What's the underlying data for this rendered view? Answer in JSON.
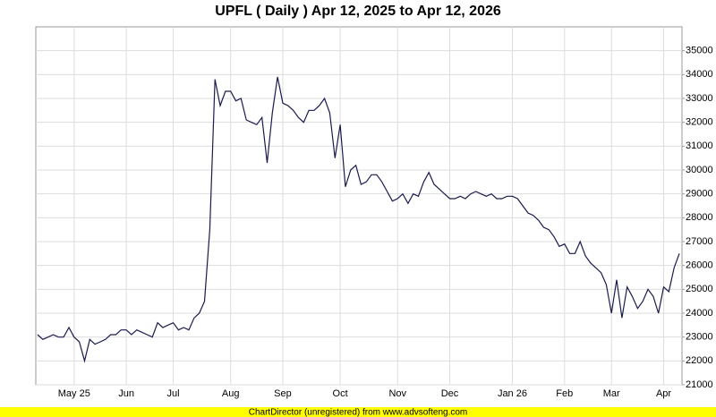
{
  "chart_data": {
    "type": "line",
    "title": "UPFL ( Daily ) Apr 12, 2025 to Apr 12, 2026",
    "footer": "ChartDirector (unregistered) from www.advsofteng.com",
    "color": "#1a1a4e",
    "categories": [
      null,
      null,
      null,
      null,
      null,
      null,
      null,
      "May 25",
      null,
      null,
      null,
      null,
      null,
      null,
      null,
      null,
      null,
      "Jun",
      null,
      null,
      null,
      null,
      null,
      null,
      null,
      null,
      "Jul",
      null,
      null,
      null,
      null,
      null,
      null,
      null,
      null,
      null,
      null,
      "Aug",
      null,
      null,
      null,
      null,
      null,
      null,
      null,
      null,
      null,
      "Sep",
      null,
      null,
      null,
      null,
      null,
      null,
      null,
      null,
      null,
      null,
      "Oct",
      null,
      null,
      null,
      null,
      null,
      null,
      null,
      null,
      null,
      null,
      "Nov",
      null,
      null,
      null,
      null,
      null,
      null,
      null,
      null,
      null,
      "Dec",
      null,
      null,
      null,
      null,
      null,
      null,
      null,
      null,
      null,
      null,
      null,
      "Jan 26",
      null,
      null,
      null,
      null,
      null,
      null,
      null,
      null,
      null,
      "Feb",
      null,
      null,
      null,
      null,
      null,
      null,
      null,
      null,
      "Mar",
      null,
      null,
      null,
      null,
      null,
      null,
      null,
      null,
      null,
      "Apr",
      null,
      null,
      null
    ],
    "values": [
      23100,
      22900,
      23000,
      23100,
      23000,
      23000,
      23400,
      23000,
      22800,
      22000,
      22900,
      22700,
      22800,
      22900,
      23100,
      23100,
      23300,
      23300,
      23100,
      23300,
      23200,
      23100,
      23000,
      23600,
      23400,
      23500,
      23600,
      23300,
      23400,
      23300,
      23800,
      24000,
      24500,
      27500,
      33800,
      32700,
      33300,
      33300,
      32900,
      33000,
      32100,
      32000,
      31900,
      32200,
      30300,
      32400,
      33900,
      32800,
      32700,
      32500,
      32200,
      32000,
      32500,
      32500,
      32700,
      33000,
      32400,
      30500,
      31900,
      29300,
      30000,
      30200,
      29400,
      29500,
      29800,
      29800,
      29500,
      29100,
      28700,
      28800,
      29000,
      28600,
      29000,
      28900,
      29500,
      29900,
      29400,
      29200,
      29000,
      28800,
      28800,
      28900,
      28800,
      29000,
      29100,
      29000,
      28900,
      29000,
      28800,
      28800,
      28900,
      28900,
      28800,
      28500,
      28200,
      28100,
      27900,
      27600,
      27500,
      27200,
      26800,
      26900,
      26500,
      26500,
      27000,
      26400,
      26100,
      25900,
      25700,
      25200,
      24000,
      25400,
      23800,
      25100,
      24700,
      24200,
      24500,
      25000,
      24700,
      24000,
      25100,
      24900,
      25900,
      26500
    ],
    "ylim": [
      21000,
      36000
    ],
    "yticks": [
      21000,
      22000,
      23000,
      24000,
      25000,
      26000,
      27000,
      28000,
      29000,
      30000,
      31000,
      32000,
      33000,
      34000,
      35000
    ],
    "grid": true
  }
}
